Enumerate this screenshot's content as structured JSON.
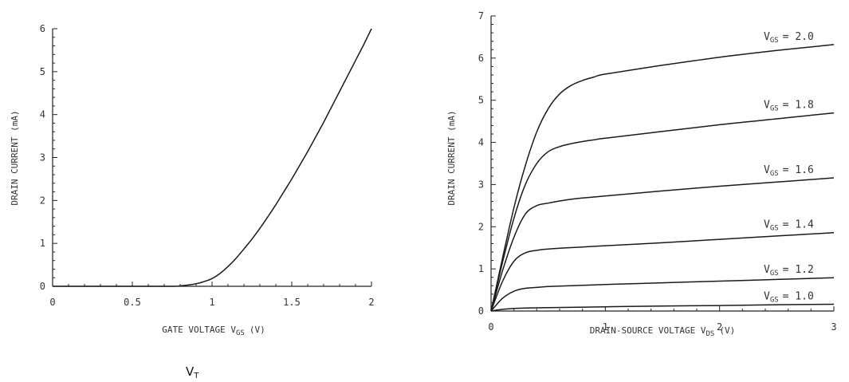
{
  "chart_data": [
    {
      "type": "line",
      "title": "",
      "xlabel_main": "GATE VOLTAGE V",
      "xlabel_sub": "GS",
      "xlabel_unit": "(V)",
      "ylabel": "DRAIN CURRENT (mA)",
      "xlim": [
        0,
        2
      ],
      "ylim": [
        0,
        6
      ],
      "x_ticks": [
        "0",
        "0.5",
        "1",
        "1.5",
        "2"
      ],
      "y_ticks": [
        "0",
        "1",
        "2",
        "3",
        "4",
        "5",
        "6"
      ],
      "grid": false,
      "series": [
        {
          "x": [
            0,
            0.5,
            0.75,
            0.8,
            0.85,
            0.9,
            0.95,
            1.0,
            1.05,
            1.1,
            1.15,
            1.2,
            1.25,
            1.3,
            1.35,
            1.4,
            1.45,
            1.5,
            1.55,
            1.6,
            1.65,
            1.7,
            1.75,
            1.8,
            1.85,
            1.9,
            1.95,
            2.0
          ],
          "y": [
            0,
            0,
            0,
            0.01,
            0.03,
            0.06,
            0.11,
            0.18,
            0.3,
            0.46,
            0.65,
            0.87,
            1.1,
            1.35,
            1.62,
            1.9,
            2.2,
            2.5,
            2.82,
            3.14,
            3.48,
            3.82,
            4.18,
            4.54,
            4.9,
            5.26,
            5.62,
            6.0
          ]
        }
      ],
      "annotation_main": "V",
      "annotation_sub": "T"
    },
    {
      "type": "line",
      "title": "",
      "xlabel_main": "DRAIN-SOURCE VOLTAGE V",
      "xlabel_sub": "DS",
      "xlabel_unit": "(V)",
      "ylabel": "DRAIN CURRENT (mA)",
      "xlim": [
        0,
        3
      ],
      "ylim": [
        0,
        7
      ],
      "x_ticks": [
        "0",
        "1",
        "2",
        "3"
      ],
      "y_ticks": [
        "0",
        "1",
        "2",
        "3",
        "4",
        "5",
        "6",
        "7"
      ],
      "grid": false,
      "series": [
        {
          "name_main": "V",
          "name_sub": "GS",
          "name_value": "= 2.0",
          "x": [
            0,
            0.1,
            0.2,
            0.3,
            0.4,
            0.5,
            0.6,
            0.7,
            0.8,
            0.9,
            1.0,
            1.5,
            2.0,
            2.5,
            3.0
          ],
          "y": [
            0,
            1.25,
            2.45,
            3.45,
            4.25,
            4.8,
            5.15,
            5.35,
            5.47,
            5.55,
            5.62,
            5.83,
            6.02,
            6.18,
            6.32
          ]
        },
        {
          "name_main": "V",
          "name_sub": "GS",
          "name_value": "= 1.8",
          "x": [
            0,
            0.1,
            0.2,
            0.3,
            0.4,
            0.5,
            0.6,
            0.7,
            0.8,
            0.9,
            1.0,
            1.5,
            2.0,
            2.5,
            3.0
          ],
          "y": [
            0,
            1.15,
            2.2,
            3.0,
            3.5,
            3.78,
            3.9,
            3.97,
            4.02,
            4.06,
            4.1,
            4.26,
            4.42,
            4.56,
            4.7
          ]
        },
        {
          "name_main": "V",
          "name_sub": "GS",
          "name_value": "= 1.6",
          "x": [
            0,
            0.1,
            0.2,
            0.3,
            0.4,
            0.5,
            0.6,
            0.7,
            0.8,
            1.0,
            1.5,
            2.0,
            2.5,
            3.0
          ],
          "y": [
            0,
            0.95,
            1.75,
            2.3,
            2.5,
            2.56,
            2.61,
            2.65,
            2.68,
            2.73,
            2.85,
            2.96,
            3.06,
            3.16
          ]
        },
        {
          "name_main": "V",
          "name_sub": "GS",
          "name_value": "= 1.4",
          "x": [
            0,
            0.1,
            0.2,
            0.3,
            0.4,
            0.5,
            0.6,
            0.8,
            1.0,
            1.5,
            2.0,
            2.5,
            3.0
          ],
          "y": [
            0,
            0.7,
            1.18,
            1.38,
            1.44,
            1.47,
            1.49,
            1.52,
            1.55,
            1.62,
            1.7,
            1.78,
            1.86
          ]
        },
        {
          "name_main": "V",
          "name_sub": "GS",
          "name_value": "= 1.2",
          "x": [
            0,
            0.1,
            0.2,
            0.3,
            0.4,
            0.5,
            0.7,
            1.0,
            1.5,
            2.0,
            2.5,
            3.0
          ],
          "y": [
            0,
            0.3,
            0.47,
            0.54,
            0.56,
            0.58,
            0.6,
            0.63,
            0.67,
            0.71,
            0.75,
            0.79
          ]
        },
        {
          "name_main": "V",
          "name_sub": "GS",
          "name_value": "= 1.0",
          "x": [
            0,
            0.1,
            0.2,
            0.3,
            0.5,
            1.0,
            1.5,
            2.0,
            2.5,
            3.0
          ],
          "y": [
            0,
            0.04,
            0.06,
            0.07,
            0.08,
            0.1,
            0.12,
            0.13,
            0.15,
            0.16
          ]
        }
      ]
    }
  ]
}
